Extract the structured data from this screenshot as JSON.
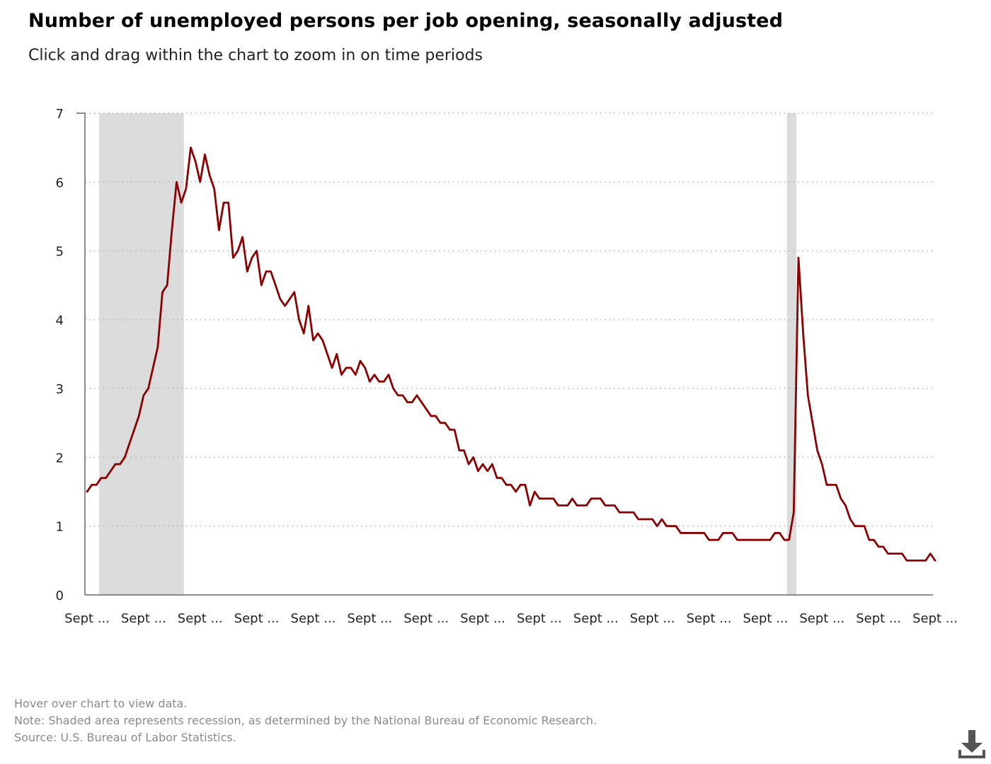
{
  "header": {
    "title": "Number of unemployed persons per job opening, seasonally adjusted",
    "subtitle": "Click and drag within the chart to zoom in on time periods"
  },
  "chart_data": {
    "type": "line",
    "x_tick_labels": [
      "Sept ...",
      "Sept ...",
      "Sept ...",
      "Sept ...",
      "Sept ...",
      "Sept ...",
      "Sept ...",
      "Sept ...",
      "Sept ...",
      "Sept ...",
      "Sept ...",
      "Sept ...",
      "Sept ...",
      "Sept ...",
      "Sept ...",
      "Sept ..."
    ],
    "y_ticks": [
      0,
      1,
      2,
      3,
      4,
      5,
      6,
      7
    ],
    "ylim": [
      0,
      7
    ],
    "xlim": [
      "2007-09",
      "2022-09"
    ],
    "grid": true,
    "recessions": [
      {
        "start": "2007-12",
        "end": "2009-06"
      },
      {
        "start": "2020-02",
        "end": "2020-04"
      }
    ],
    "line_color": "#8b0000",
    "series": [
      {
        "start": "2007-09",
        "frequency": "monthly",
        "values": [
          1.5,
          1.6,
          1.6,
          1.7,
          1.7,
          1.8,
          1.9,
          1.9,
          2.0,
          2.2,
          2.4,
          2.6,
          2.9,
          3.0,
          3.3,
          3.6,
          4.4,
          4.5,
          5.3,
          6.0,
          5.7,
          5.9,
          6.5,
          6.3,
          6.0,
          6.4,
          6.1,
          5.9,
          5.3,
          5.7,
          5.7,
          4.9,
          5.0,
          5.2,
          4.7,
          4.9,
          5.0,
          4.5,
          4.7,
          4.7,
          4.5,
          4.3,
          4.2,
          4.3,
          4.4,
          4.0,
          3.8,
          4.2,
          3.7,
          3.8,
          3.7,
          3.5,
          3.3,
          3.5,
          3.2,
          3.3,
          3.3,
          3.2,
          3.4,
          3.3,
          3.1,
          3.2,
          3.1,
          3.1,
          3.2,
          3.0,
          2.9,
          2.9,
          2.8,
          2.8,
          2.9,
          2.8,
          2.7,
          2.6,
          2.6,
          2.5,
          2.5,
          2.4,
          2.4,
          2.1,
          2.1,
          1.9,
          2.0,
          1.8,
          1.9,
          1.8,
          1.9,
          1.7,
          1.7,
          1.6,
          1.6,
          1.5,
          1.6,
          1.6,
          1.3,
          1.5,
          1.4,
          1.4,
          1.4,
          1.4,
          1.3,
          1.3,
          1.3,
          1.4,
          1.3,
          1.3,
          1.3,
          1.4,
          1.4,
          1.4,
          1.3,
          1.3,
          1.3,
          1.2,
          1.2,
          1.2,
          1.2,
          1.1,
          1.1,
          1.1,
          1.1,
          1.0,
          1.1,
          1.0,
          1.0,
          1.0,
          0.9,
          0.9,
          0.9,
          0.9,
          0.9,
          0.9,
          0.8,
          0.8,
          0.8,
          0.9,
          0.9,
          0.9,
          0.8,
          0.8,
          0.8,
          0.8,
          0.8,
          0.8,
          0.8,
          0.8,
          0.9,
          0.9,
          0.8,
          0.8,
          1.2,
          4.9,
          3.8,
          2.9,
          2.5,
          2.1,
          1.9,
          1.6,
          1.6,
          1.6,
          1.4,
          1.3,
          1.1,
          1.0,
          1.0,
          1.0,
          0.8,
          0.8,
          0.7,
          0.7,
          0.6,
          0.6,
          0.6,
          0.6,
          0.5,
          0.5,
          0.5,
          0.5,
          0.5,
          0.6,
          0.5
        ]
      }
    ]
  },
  "footer": {
    "hover_note": "Hover over chart to view data.",
    "note": "Note: Shaded area represents recession, as determined by the National Bureau of Economic Research.",
    "source": "Source: U.S. Bureau of Labor Statistics."
  },
  "icons": {
    "download": "download-icon"
  }
}
